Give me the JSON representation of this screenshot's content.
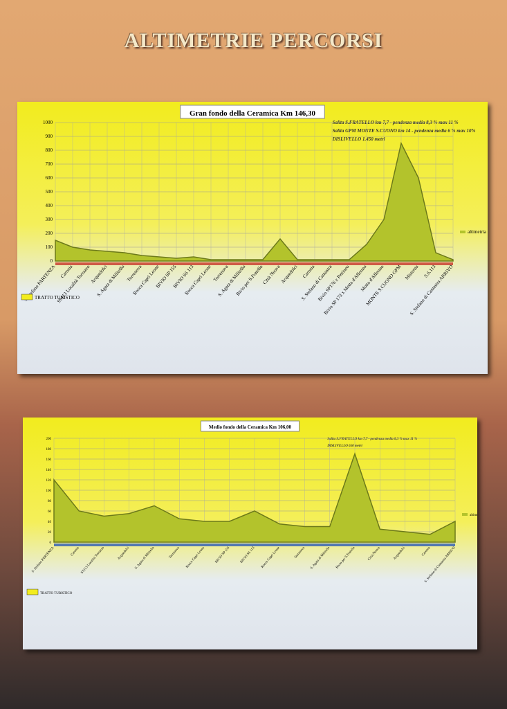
{
  "title": "ALTIMETRIE PERCORSI",
  "chart_data": [
    {
      "type": "area",
      "title": "Gran fondo della Ceramica Km 146,30",
      "annotations": [
        "Salita S.FRATELLO km 7,7 - pendenza media 8,3 % max 11 %",
        "Salita GPM MONTE S.CUONO km 14 - pendenza media 6 % max 10%",
        "DISLIVELLO 1.450 metri"
      ],
      "legend_note": "TRATTO TURISTICO",
      "categories": [
        "S. Stefano PARTENZA",
        "Caronia",
        "SS113 Località Torrazzo",
        "Acquedolci",
        "S. Agata di Militello",
        "Torrenova",
        "Rocca Capri Leone",
        "BIVIO SP 155",
        "BIVIO SS 113",
        "Rocca Capri Leone",
        "Torrenova",
        "S. Agata di Militello",
        "Bivio per S.Fratello",
        "Città Nuova",
        "Acquedolci",
        "Caronia",
        "S. Stefano di Camastra",
        "Bivio SP176 x Pettineo",
        "Bivio SP 173 x Motta d'Affermo",
        "Motta d'Affermo",
        "MONTE S.CUONO GPM",
        "Mistretta",
        "S.S.113",
        "S. Stefano di Camastra ARRIVO"
      ],
      "series": [
        {
          "name": "altimetria",
          "color": "#b3c32c",
          "values": [
            150,
            100,
            80,
            70,
            60,
            40,
            30,
            20,
            30,
            10,
            10,
            10,
            10,
            160,
            10,
            10,
            10,
            10,
            120,
            300,
            850,
            600,
            60,
            10
          ]
        }
      ],
      "ylim": [
        0,
        1000
      ],
      "yticks": [
        0,
        100,
        200,
        300,
        400,
        500,
        600,
        700,
        800,
        900,
        1000
      ],
      "grid": true
    },
    {
      "type": "area",
      "title": "Medio fondo della Ceramica Km 106,00",
      "annotations": [
        "Salita S.FRATELLO km 7,7 - pendenza media 8,3 % max 11 %",
        "DISLIVELLO 650 metri"
      ],
      "legend_note": "TRATTO TURISTICO",
      "categories": [
        "S. Stefano PARTENZA",
        "Caronia",
        "SS113 Località Torrazzo",
        "Acquedolci",
        "S. Agata di Militello",
        "Torrenova",
        "Rocca Capri Leone",
        "BIVIO SP 155",
        "BIVIO SS 113",
        "Rocca Capri Leone",
        "Torrenova",
        "S. Agata di Militello",
        "Bivio per S.Fratello",
        "Città Nuova",
        "Acquedolci",
        "Caronia",
        "S. Stefano di Camastra ARRIVO"
      ],
      "series": [
        {
          "name": "altimetria",
          "color": "#b3c32c",
          "values": [
            120,
            60,
            50,
            55,
            70,
            45,
            40,
            40,
            60,
            35,
            30,
            30,
            170,
            25,
            20,
            15,
            40
          ]
        }
      ],
      "ylim": [
        0,
        200
      ],
      "yticks": [
        0,
        20,
        40,
        60,
        80,
        100,
        120,
        140,
        160,
        180,
        200
      ],
      "grid": true
    }
  ]
}
